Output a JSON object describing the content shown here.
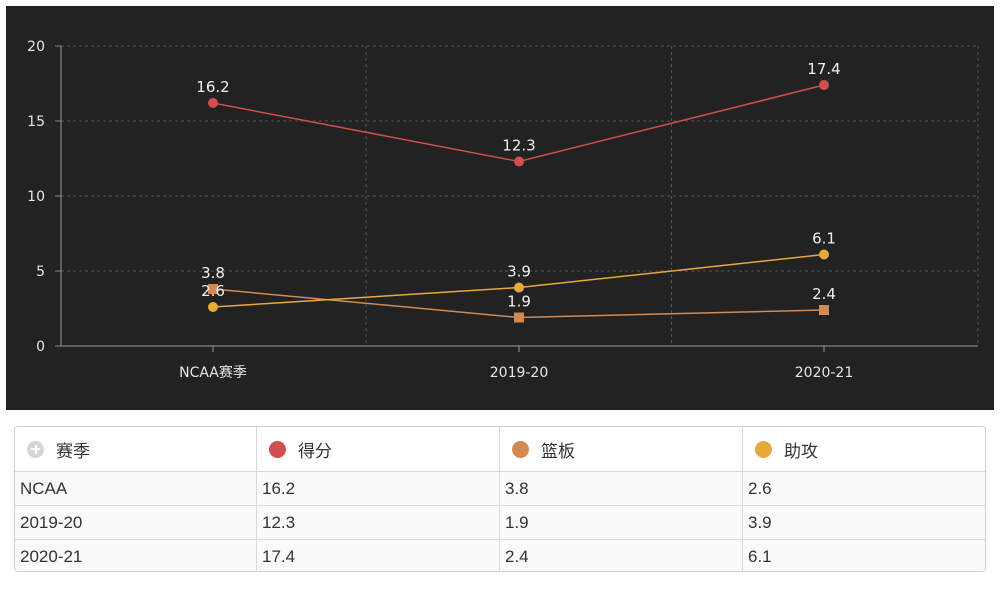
{
  "chart_data": {
    "type": "line",
    "categories": [
      "NCAA赛季",
      "2019-20",
      "2020-21"
    ],
    "series": [
      {
        "name": "得分",
        "values": [
          16.2,
          12.3,
          17.4
        ],
        "color": "#d14f4f",
        "marker": "circle"
      },
      {
        "name": "篮板",
        "values": [
          3.8,
          1.9,
          2.4
        ],
        "color": "#d08a52",
        "marker": "square"
      },
      {
        "name": "助攻",
        "values": [
          2.6,
          3.9,
          6.1
        ],
        "color": "#e8a93c",
        "marker": "circle"
      }
    ],
    "yticks": [
      0,
      5,
      10,
      15,
      20
    ],
    "ylim": [
      0,
      20
    ],
    "grid": true,
    "title": "",
    "xlabel": "",
    "ylabel": ""
  },
  "table": {
    "header_icon": "plus-circle-icon",
    "headers": [
      "赛季",
      "得分",
      "篮板",
      "助攻"
    ],
    "header_colors": [
      "",
      "#d14f4f",
      "#d08a52",
      "#e8a93c"
    ],
    "rows": [
      [
        "NCAA",
        "16.2",
        "3.8",
        "2.6"
      ],
      [
        "2019-20",
        "12.3",
        "1.9",
        "3.9"
      ],
      [
        "2020-21",
        "17.4",
        "2.4",
        "6.1"
      ]
    ]
  }
}
